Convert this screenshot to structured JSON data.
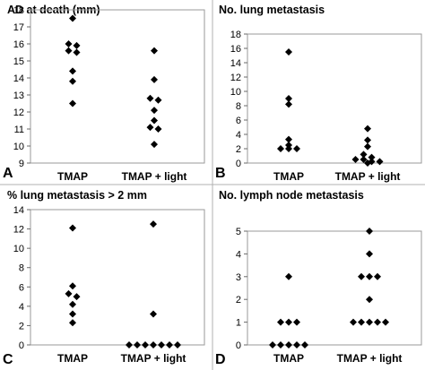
{
  "chart_data": [
    {
      "panel": "A",
      "type": "scatter",
      "title": "AD at death (mm)",
      "categories": [
        "TMAP",
        "TMAP + light"
      ],
      "ylim": [
        9,
        18
      ],
      "yticks": [
        9,
        10,
        11,
        12,
        13,
        14,
        15,
        16,
        17,
        18
      ],
      "grid": false,
      "series": [
        {
          "category": "TMAP",
          "values": [
            17.5,
            16.0,
            15.9,
            15.6,
            15.5,
            14.4,
            13.8,
            12.5
          ]
        },
        {
          "category": "TMAP + light",
          "values": [
            15.6,
            13.9,
            12.8,
            12.7,
            12.1,
            11.5,
            11.1,
            11.0,
            10.1
          ]
        }
      ]
    },
    {
      "panel": "B",
      "type": "scatter",
      "title": "No. lung metastasis",
      "categories": [
        "TMAP",
        "TMAP + light"
      ],
      "ylim": [
        0,
        18
      ],
      "yticks": [
        0,
        2,
        4,
        6,
        8,
        10,
        12,
        14,
        16,
        18
      ],
      "grid": false,
      "series": [
        {
          "category": "TMAP",
          "values": [
            15.5,
            9.0,
            8.2,
            3.3,
            2.5,
            2.0,
            2.0,
            2.0
          ]
        },
        {
          "category": "TMAP + light",
          "values": [
            4.8,
            3.2,
            2.3,
            1.2,
            0.8,
            0.5,
            0.5,
            0.2,
            0.2,
            0.0
          ]
        }
      ]
    },
    {
      "panel": "C",
      "type": "scatter",
      "title": "% lung metastasis > 2 mm",
      "categories": [
        "TMAP",
        "TMAP + light"
      ],
      "ylim": [
        0,
        14
      ],
      "yticks": [
        0,
        2,
        4,
        6,
        8,
        10,
        12,
        14
      ],
      "grid": false,
      "series": [
        {
          "category": "TMAP",
          "values": [
            12.1,
            6.1,
            5.3,
            5.0,
            4.2,
            3.2,
            2.3
          ]
        },
        {
          "category": "TMAP + light",
          "values": [
            12.5,
            3.2,
            0,
            0,
            0,
            0,
            0,
            0,
            0
          ]
        }
      ]
    },
    {
      "panel": "D",
      "type": "scatter",
      "title": "No. lymph node metastasis",
      "categories": [
        "TMAP",
        "TMAP + light"
      ],
      "ylim": [
        0,
        5
      ],
      "yticks": [
        0,
        1,
        2,
        3,
        4,
        5
      ],
      "grid": false,
      "series": [
        {
          "category": "TMAP",
          "values": [
            3,
            1,
            1,
            1,
            0,
            0,
            0,
            0,
            0
          ]
        },
        {
          "category": "TMAP + light",
          "values": [
            5,
            4,
            3,
            3,
            3,
            2,
            1,
            1,
            1,
            1,
            1
          ]
        }
      ]
    }
  ]
}
